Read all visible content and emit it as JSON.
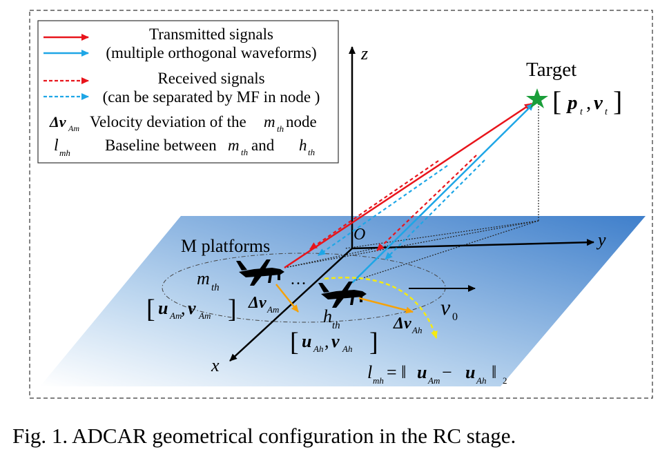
{
  "legend": {
    "transmitted_label": "Transmitted signals",
    "transmitted_sub": "(multiple orthogonal waveforms)",
    "received_label": "Received signals",
    "received_sub": "(can be separated by MF in node )",
    "velocity_symbol": "Δv",
    "velocity_symbol_sub": "Am",
    "velocity_text_a": "Velocity deviation of the ",
    "velocity_m": "m",
    "velocity_m_sub": "th",
    "velocity_text_b": " node",
    "baseline_symbol": "l",
    "baseline_symbol_sub": "mh",
    "baseline_text_a": "Baseline between ",
    "baseline_m": "m",
    "baseline_m_sub": "th",
    "baseline_text_and": " and ",
    "baseline_h": "h",
    "baseline_h_sub": "th",
    "colors": {
      "transmit": "#e8141b",
      "receive_blue": "#1ea6e6"
    }
  },
  "axes": {
    "x": "x",
    "y": "y",
    "z": "z",
    "origin": "O"
  },
  "target": {
    "title": "Target",
    "state_p": "p",
    "state_p_sub": "t",
    "state_v": "v",
    "state_v_sub": "t",
    "star_color": "#1a9e3a"
  },
  "platforms": {
    "group_label": "M platforms",
    "m_label": "m",
    "m_sub": "th",
    "h_label": "h",
    "h_sub": "th",
    "m_state_u": "u",
    "m_state_u_sub": "Am",
    "m_state_v": "v",
    "m_state_v_sub": "Am",
    "h_state_u": "u",
    "h_state_u_sub": "Ah",
    "h_state_v": "v",
    "h_state_v_sub": "Ah",
    "dv_m": "Δv",
    "dv_m_sub": "Am",
    "dv_h": "Δv",
    "dv_h_sub": "Ah",
    "v0": "v",
    "v0_sub": "0",
    "dots": "…"
  },
  "baseline_formula": {
    "lhs": "l",
    "lhs_sub": "mh",
    "eq": " = ‖",
    "u1": "u",
    "u1_sub": "Am",
    "minus": " − ",
    "u2": "u",
    "u2_sub": "Ah",
    "close": "‖",
    "norm_sub": "2"
  },
  "caption": "Fig. 1. ADCAR geometrical configuration in the RC stage.",
  "colors": {
    "plane_dark": "#4a86cf",
    "plane_light": "#ffffff",
    "arrow_orange": "#f5a20a",
    "arrow_yellow": "#f5ea10"
  }
}
